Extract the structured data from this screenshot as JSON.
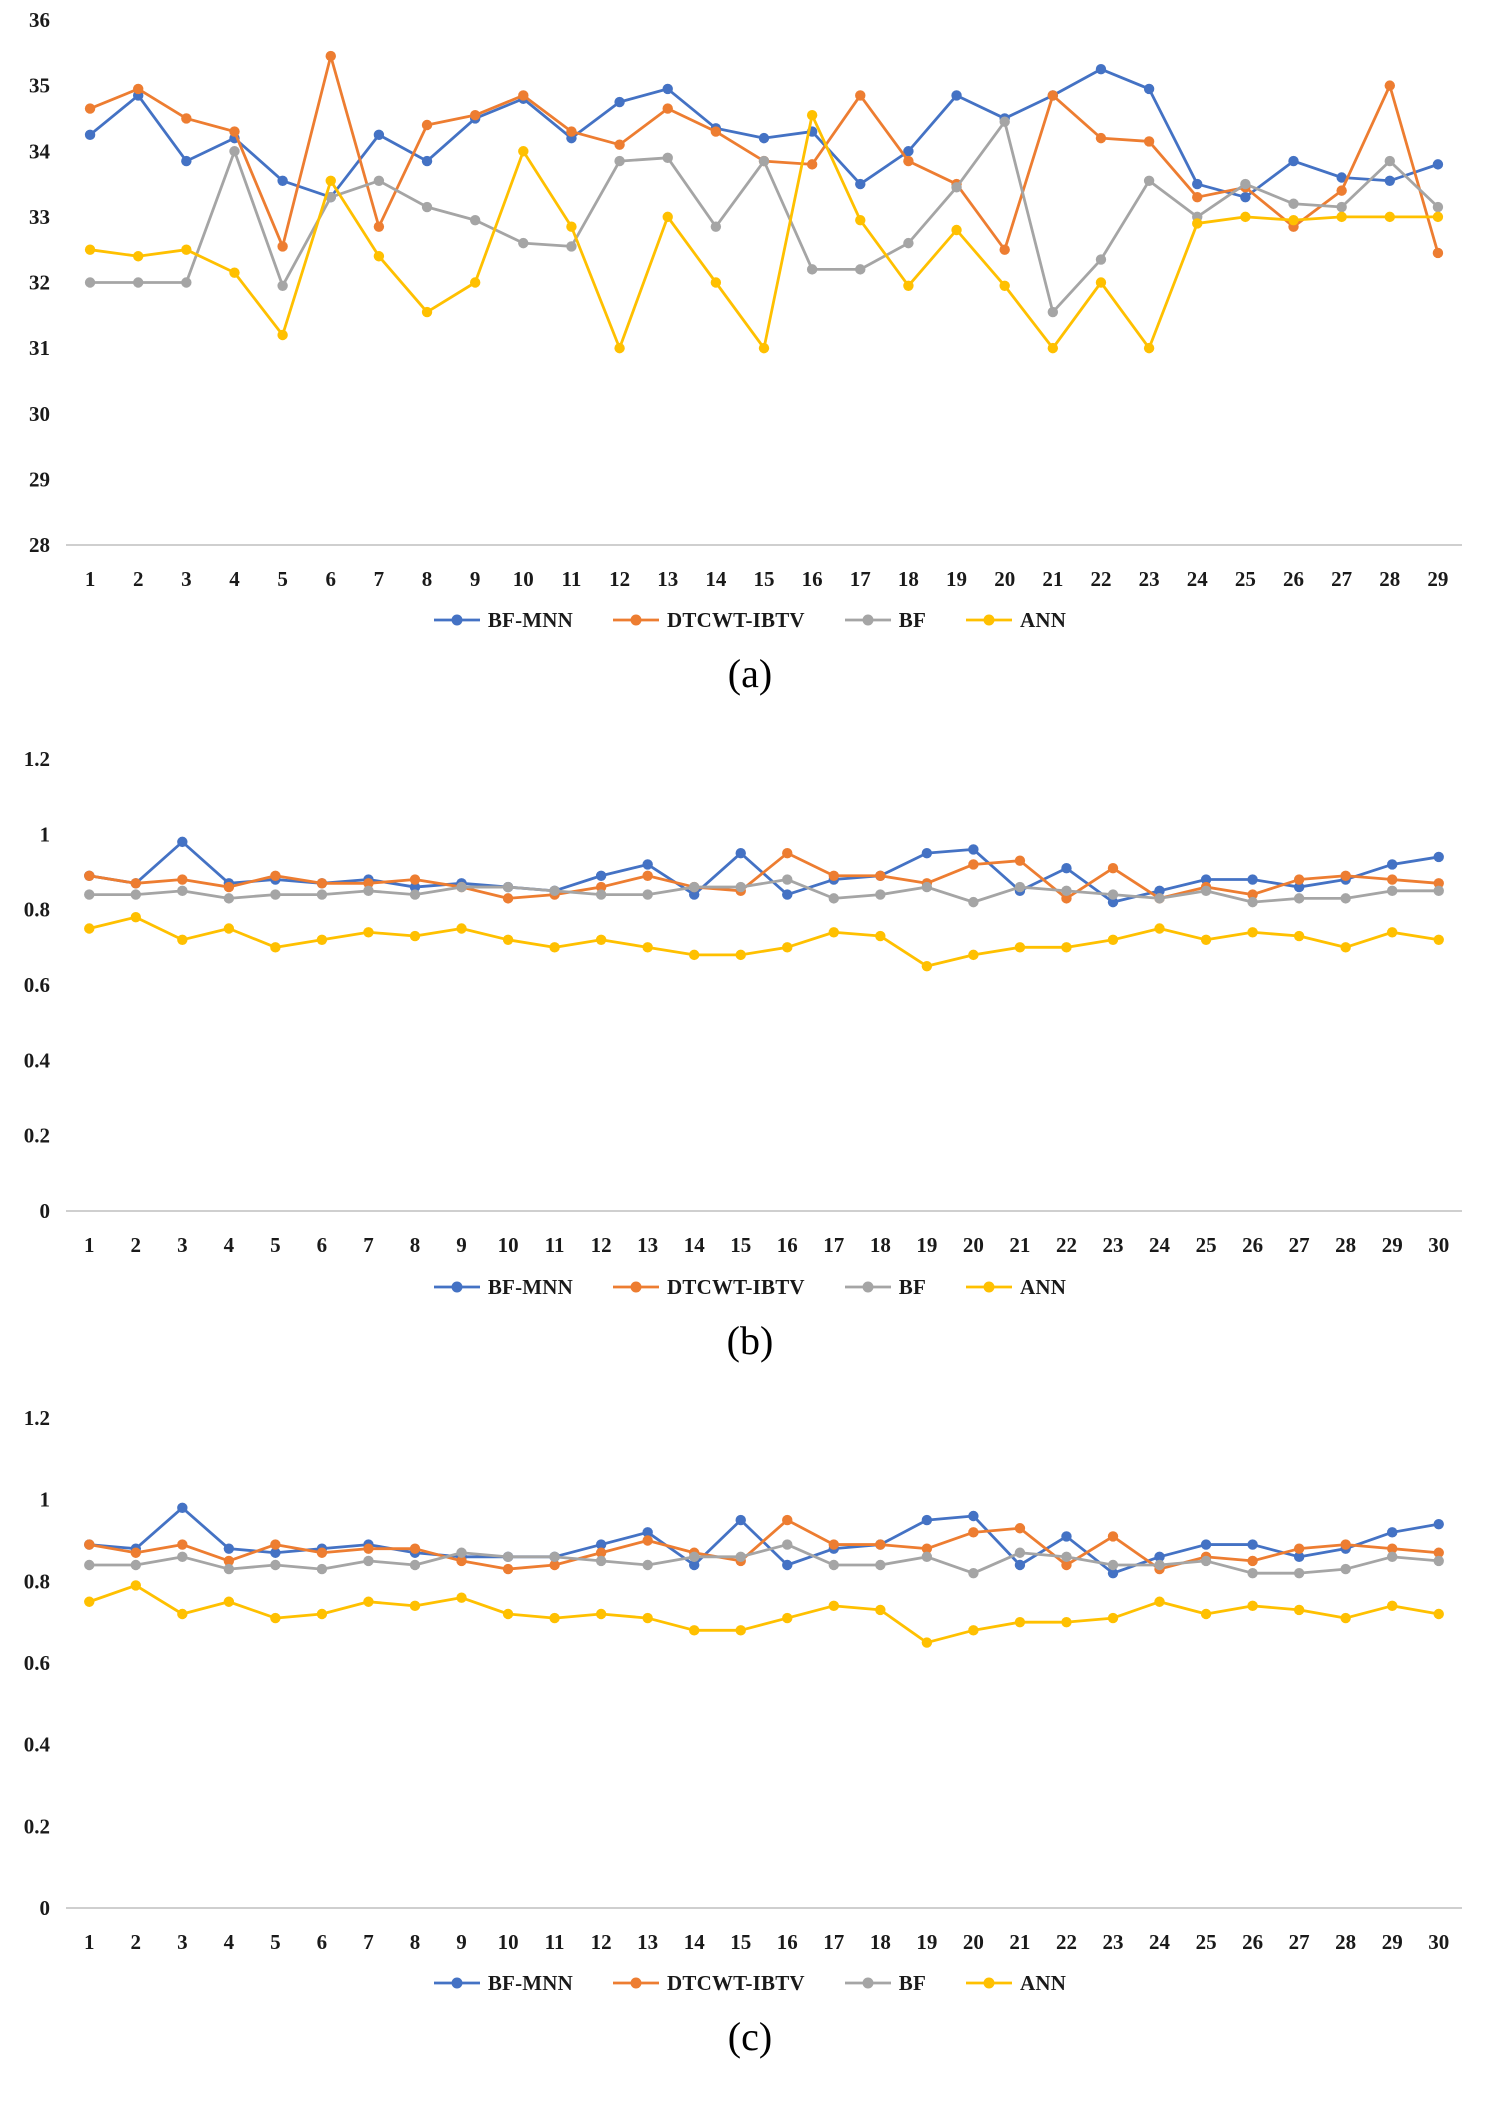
{
  "figure": {
    "type": "three stacked line charts comparing fusion methods",
    "legend_labels": [
      "BF-MNN",
      "DTCWT-IBTV",
      "BF",
      "ANN"
    ]
  },
  "chart_data": [
    {
      "type": "line",
      "caption": "(a)",
      "title": "",
      "xlabel": "",
      "ylabel": "",
      "ylim": [
        28,
        36
      ],
      "yticks": [
        {
          "value": 28,
          "label": "28"
        },
        {
          "value": 29,
          "label": "29"
        },
        {
          "value": 30,
          "label": "30"
        },
        {
          "value": 31,
          "label": "31"
        },
        {
          "value": 32,
          "label": "32"
        },
        {
          "value": 33,
          "label": "33"
        },
        {
          "value": 34,
          "label": "34"
        },
        {
          "value": 35,
          "label": "35"
        },
        {
          "value": 36,
          "label": "36"
        }
      ],
      "grid": false,
      "legend_position": "bottom",
      "categories": [
        "1",
        "2",
        "3",
        "4",
        "5",
        "6",
        "7",
        "8",
        "9",
        "10",
        "11",
        "12",
        "13",
        "14",
        "15",
        "16",
        "17",
        "18",
        "19",
        "20",
        "21",
        "22",
        "23",
        "24",
        "25",
        "26",
        "27",
        "28",
        "29"
      ],
      "series": [
        {
          "name": "BF-MNN",
          "color": "#4472C4",
          "values": [
            34.25,
            34.85,
            33.85,
            34.2,
            33.55,
            33.3,
            34.25,
            33.85,
            34.5,
            34.8,
            34.2,
            34.75,
            34.95,
            34.35,
            34.2,
            34.3,
            33.5,
            34.0,
            34.85,
            34.5,
            34.85,
            35.25,
            34.95,
            33.5,
            33.3,
            33.85,
            33.6,
            33.55,
            33.8
          ]
        },
        {
          "name": "DTCWT-IBTV",
          "color": "#ED7D31",
          "values": [
            34.65,
            34.95,
            34.5,
            34.3,
            32.55,
            35.45,
            32.85,
            34.4,
            34.55,
            34.85,
            34.3,
            34.1,
            34.65,
            34.3,
            33.85,
            33.8,
            34.85,
            33.85,
            33.5,
            32.5,
            34.85,
            34.2,
            34.15,
            33.3,
            33.45,
            32.85,
            33.4,
            35.0,
            32.45
          ]
        },
        {
          "name": "BF",
          "color": "#A5A5A5",
          "values": [
            32.0,
            32.0,
            32.0,
            34.0,
            31.95,
            33.3,
            33.55,
            33.15,
            32.95,
            32.6,
            32.55,
            33.85,
            33.9,
            32.85,
            33.85,
            32.2,
            32.2,
            32.6,
            33.45,
            34.45,
            31.55,
            32.35,
            33.55,
            33.0,
            33.5,
            33.2,
            33.15,
            33.85,
            33.15
          ]
        },
        {
          "name": "ANN",
          "color": "#FFC000",
          "values": [
            32.5,
            32.4,
            32.5,
            32.15,
            31.2,
            33.55,
            32.4,
            31.55,
            32.0,
            34.0,
            32.85,
            31.0,
            33.0,
            32.0,
            31.0,
            34.55,
            32.95,
            31.95,
            32.8,
            31.95,
            31.0,
            32.0,
            31.0,
            32.9,
            33.0,
            32.95,
            33.0,
            33.0,
            33.0
          ]
        }
      ]
    },
    {
      "type": "line",
      "caption": "(b)",
      "title": "",
      "xlabel": "",
      "ylabel": "",
      "ylim": [
        0,
        1.2
      ],
      "yticks": [
        {
          "value": 0,
          "label": "0"
        },
        {
          "value": 0.2,
          "label": "0.2"
        },
        {
          "value": 0.4,
          "label": "0.4"
        },
        {
          "value": 0.6,
          "label": "0.6"
        },
        {
          "value": 0.8,
          "label": "0.8"
        },
        {
          "value": 1,
          "label": "1"
        },
        {
          "value": 1.2,
          "label": "1.2"
        }
      ],
      "grid": false,
      "legend_position": "bottom",
      "categories": [
        "1",
        "2",
        "3",
        "4",
        "5",
        "6",
        "7",
        "8",
        "9",
        "10",
        "11",
        "12",
        "13",
        "14",
        "15",
        "16",
        "17",
        "18",
        "19",
        "20",
        "21",
        "22",
        "23",
        "24",
        "25",
        "26",
        "27",
        "28",
        "29",
        "30"
      ],
      "series": [
        {
          "name": "BF-MNN",
          "color": "#4472C4",
          "values": [
            0.89,
            0.87,
            0.98,
            0.87,
            0.88,
            0.87,
            0.88,
            0.86,
            0.87,
            0.86,
            0.85,
            0.89,
            0.92,
            0.84,
            0.95,
            0.84,
            0.88,
            0.89,
            0.95,
            0.96,
            0.85,
            0.91,
            0.82,
            0.85,
            0.88,
            0.88,
            0.86,
            0.88,
            0.92,
            0.94
          ]
        },
        {
          "name": "DTCWT-IBTV",
          "color": "#ED7D31",
          "values": [
            0.89,
            0.87,
            0.88,
            0.86,
            0.89,
            0.87,
            0.87,
            0.88,
            0.86,
            0.83,
            0.84,
            0.86,
            0.89,
            0.86,
            0.85,
            0.95,
            0.89,
            0.89,
            0.87,
            0.92,
            0.93,
            0.83,
            0.91,
            0.83,
            0.86,
            0.84,
            0.88,
            0.89,
            0.88,
            0.87
          ]
        },
        {
          "name": "BF",
          "color": "#A5A5A5",
          "values": [
            0.84,
            0.84,
            0.85,
            0.83,
            0.84,
            0.84,
            0.85,
            0.84,
            0.86,
            0.86,
            0.85,
            0.84,
            0.84,
            0.86,
            0.86,
            0.88,
            0.83,
            0.84,
            0.86,
            0.82,
            0.86,
            0.85,
            0.84,
            0.83,
            0.85,
            0.82,
            0.83,
            0.83,
            0.85,
            0.85
          ]
        },
        {
          "name": "ANN",
          "color": "#FFC000",
          "values": [
            0.75,
            0.78,
            0.72,
            0.75,
            0.7,
            0.72,
            0.74,
            0.73,
            0.75,
            0.72,
            0.7,
            0.72,
            0.7,
            0.68,
            0.68,
            0.7,
            0.74,
            0.73,
            0.65,
            0.68,
            0.7,
            0.7,
            0.72,
            0.75,
            0.72,
            0.74,
            0.73,
            0.7,
            0.74,
            0.72
          ]
        }
      ]
    },
    {
      "type": "line",
      "caption": "(c)",
      "title": "",
      "xlabel": "",
      "ylabel": "",
      "ylim": [
        0,
        1.2
      ],
      "yticks": [
        {
          "value": 0,
          "label": "0"
        },
        {
          "value": 0.2,
          "label": "0.2"
        },
        {
          "value": 0.4,
          "label": "0.4"
        },
        {
          "value": 0.6,
          "label": "0.6"
        },
        {
          "value": 0.8,
          "label": "0.8"
        },
        {
          "value": 1,
          "label": "1"
        },
        {
          "value": 1.2,
          "label": "1.2"
        }
      ],
      "grid": false,
      "legend_position": "bottom",
      "categories": [
        "1",
        "2",
        "3",
        "4",
        "5",
        "6",
        "7",
        "8",
        "9",
        "10",
        "11",
        "12",
        "13",
        "14",
        "15",
        "16",
        "17",
        "18",
        "19",
        "20",
        "21",
        "22",
        "23",
        "24",
        "25",
        "26",
        "27",
        "28",
        "29",
        "30"
      ],
      "series": [
        {
          "name": "BF-MNN",
          "color": "#4472C4",
          "values": [
            0.89,
            0.88,
            0.98,
            0.88,
            0.87,
            0.88,
            0.89,
            0.87,
            0.86,
            0.86,
            0.86,
            0.89,
            0.92,
            0.84,
            0.95,
            0.84,
            0.88,
            0.89,
            0.95,
            0.96,
            0.84,
            0.91,
            0.82,
            0.86,
            0.89,
            0.89,
            0.86,
            0.88,
            0.92,
            0.94
          ]
        },
        {
          "name": "DTCWT-IBTV",
          "color": "#ED7D31",
          "values": [
            0.89,
            0.87,
            0.89,
            0.85,
            0.89,
            0.87,
            0.88,
            0.88,
            0.85,
            0.83,
            0.84,
            0.87,
            0.9,
            0.87,
            0.85,
            0.95,
            0.89,
            0.89,
            0.88,
            0.92,
            0.93,
            0.84,
            0.91,
            0.83,
            0.86,
            0.85,
            0.88,
            0.89,
            0.88,
            0.87
          ]
        },
        {
          "name": "BF",
          "color": "#A5A5A5",
          "values": [
            0.84,
            0.84,
            0.86,
            0.83,
            0.84,
            0.83,
            0.85,
            0.84,
            0.87,
            0.86,
            0.86,
            0.85,
            0.84,
            0.86,
            0.86,
            0.89,
            0.84,
            0.84,
            0.86,
            0.82,
            0.87,
            0.86,
            0.84,
            0.84,
            0.85,
            0.82,
            0.82,
            0.83,
            0.86,
            0.85
          ]
        },
        {
          "name": "ANN",
          "color": "#FFC000",
          "values": [
            0.75,
            0.79,
            0.72,
            0.75,
            0.71,
            0.72,
            0.75,
            0.74,
            0.76,
            0.72,
            0.71,
            0.72,
            0.71,
            0.68,
            0.68,
            0.71,
            0.74,
            0.73,
            0.65,
            0.68,
            0.7,
            0.7,
            0.71,
            0.75,
            0.72,
            0.74,
            0.73,
            0.71,
            0.74,
            0.72
          ]
        }
      ]
    }
  ],
  "style": {
    "axis_line_color": "#BFBFBF",
    "tick_label_color": "#1a1a1a"
  }
}
